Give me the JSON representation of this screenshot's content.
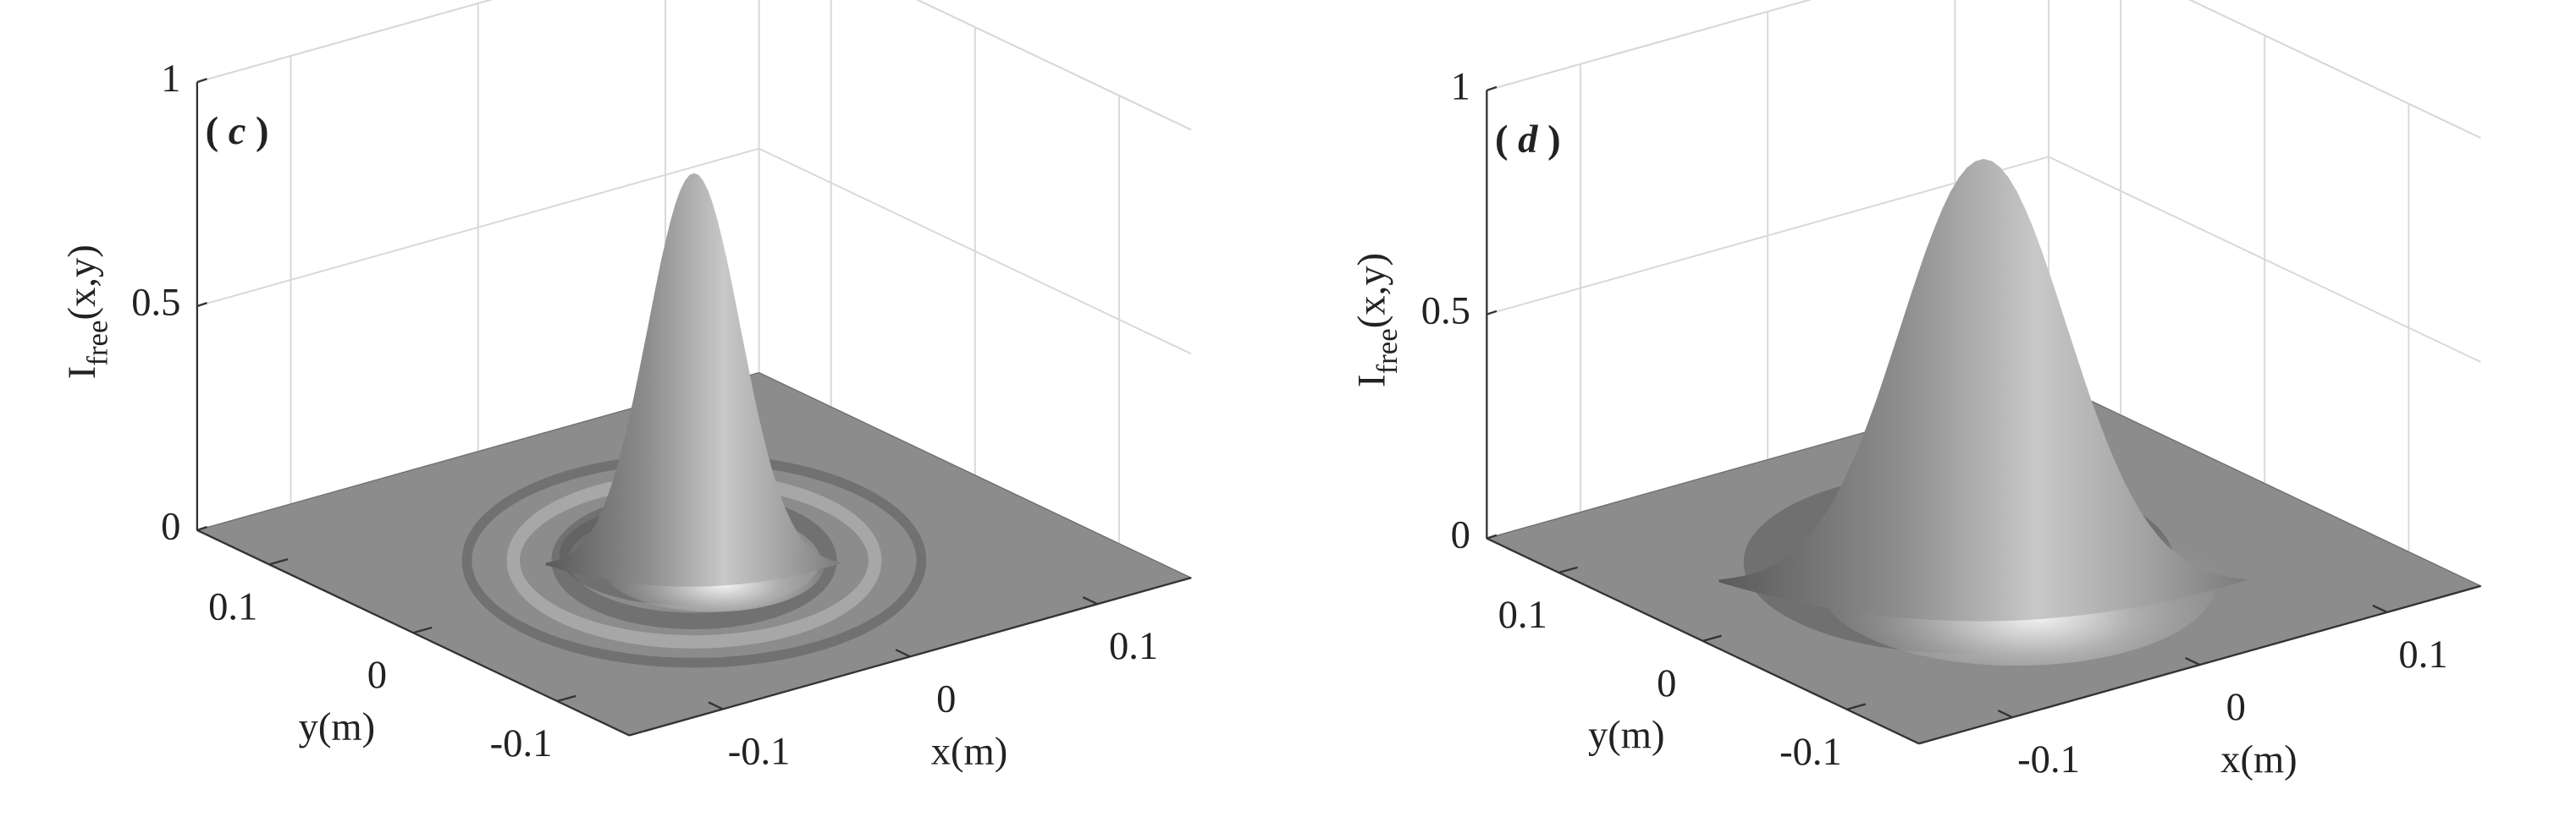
{
  "chart_data": [
    {
      "type": "surface",
      "panel_label": "c",
      "zlabel": {
        "main": "I",
        "sub": "free",
        "rest": "(x,y)"
      },
      "xlabel": "x(m)",
      "ylabel": "y(m)",
      "xlim": [
        -0.15,
        0.15
      ],
      "ylim": [
        -0.15,
        0.15
      ],
      "zlim": [
        0,
        1
      ],
      "xticks": [
        -0.1,
        0,
        0.1
      ],
      "yticks": [
        -0.1,
        0,
        0.1
      ],
      "zticks": [
        0,
        0.5,
        1
      ],
      "peak": 0.85,
      "width": 0.028,
      "ripples": true,
      "grid": true,
      "color": "#8c8c8c"
    },
    {
      "type": "surface",
      "panel_label": "d",
      "zlabel": {
        "main": "I",
        "sub": "free",
        "rest": "(x,y)"
      },
      "xlabel": "x(m)",
      "ylabel": "y(m)",
      "xlim": [
        -0.15,
        0.15
      ],
      "ylim": [
        -0.15,
        0.15
      ],
      "zlim": [
        0,
        1
      ],
      "xticks": [
        -0.1,
        0,
        0.1
      ],
      "yticks": [
        -0.1,
        0,
        0.1
      ],
      "zticks": [
        0,
        0.5,
        1
      ],
      "peak": 0.9,
      "width": 0.05,
      "ripples": false,
      "grid": true,
      "color": "#8c8c8c"
    }
  ]
}
